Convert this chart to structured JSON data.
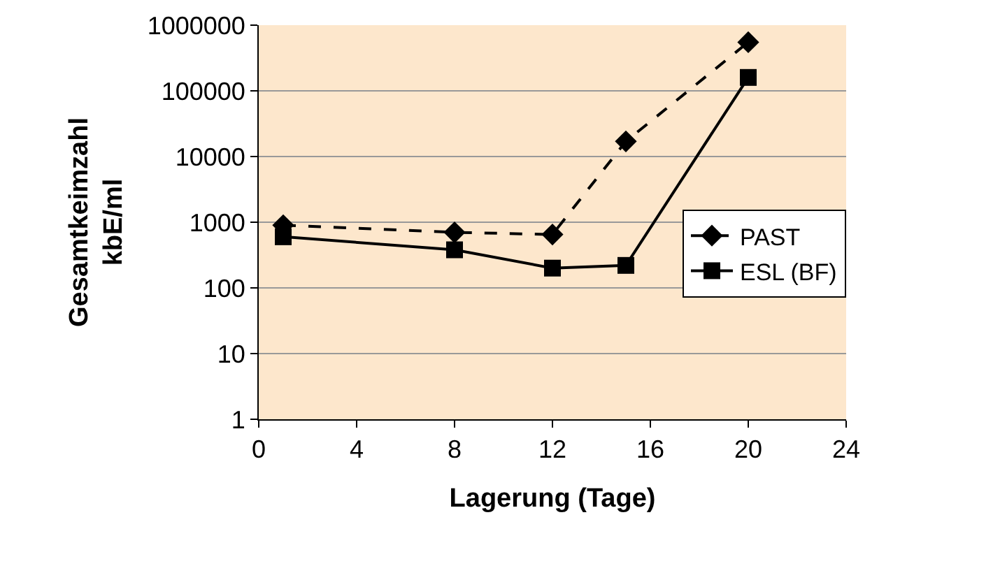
{
  "chart_data": {
    "type": "line",
    "xlabel": "Lagerung (Tage)",
    "ylabel": "Gesamtkeimzahl\nkbE/ml",
    "log": true,
    "xlim": [
      0,
      24
    ],
    "xticks": [
      0,
      4,
      8,
      12,
      16,
      20,
      24
    ],
    "ylim": [
      1,
      1000000
    ],
    "yticks": [
      1,
      10,
      100,
      1000,
      10000,
      100000,
      1000000
    ],
    "grid": "y",
    "legend": "right",
    "series": [
      {
        "name": "PAST",
        "color": "#000000",
        "marker": "diamond",
        "line_style": "dashed",
        "x": [
          1,
          8,
          12,
          15,
          20
        ],
        "values": [
          900,
          700,
          650,
          17000,
          550000
        ]
      },
      {
        "name": "ESL (BF)",
        "color": "#000000",
        "marker": "square",
        "line_style": "solid",
        "x": [
          1,
          8,
          12,
          15,
          20
        ],
        "values": [
          600,
          380,
          200,
          220,
          160000
        ]
      }
    ]
  }
}
